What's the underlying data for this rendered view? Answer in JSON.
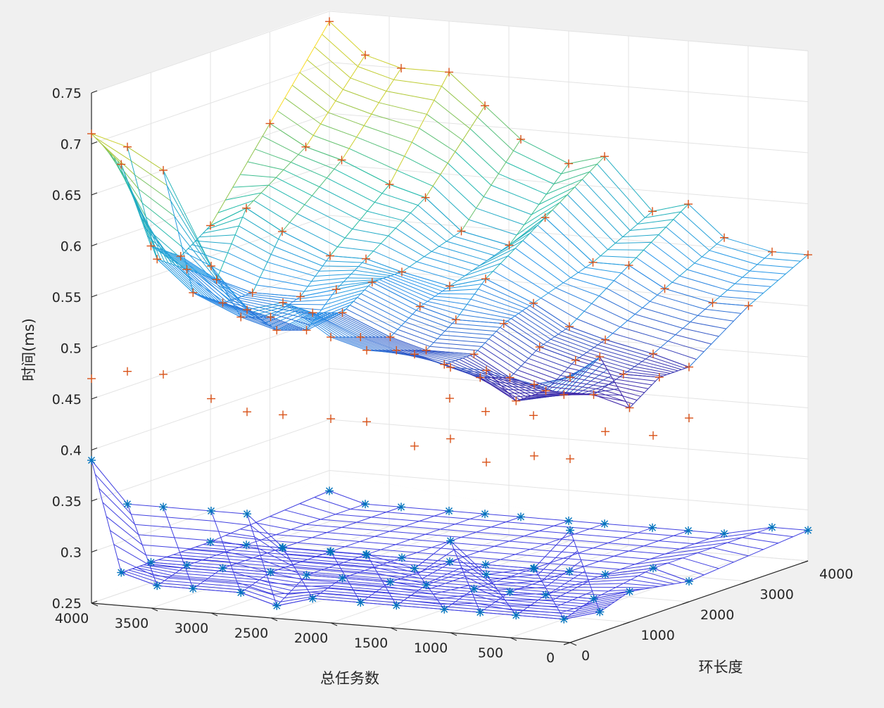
{
  "chart_data": {
    "type": "surface3d",
    "xlabel": "总任务数",
    "ylabel": "环长度",
    "zlabel": "时间(ms)",
    "xlim": [
      0,
      4000
    ],
    "ylim": [
      0,
      4000
    ],
    "zlim": [
      0.25,
      0.75
    ],
    "xticks": [
      0,
      500,
      1000,
      1500,
      2000,
      2500,
      3000,
      3500,
      4000
    ],
    "xtick_labels": [
      "0",
      "500",
      "1000",
      "1500",
      "2000",
      "2500",
      "3000",
      "3500",
      "4000"
    ],
    "yticks": [
      0,
      1000,
      2000,
      3000,
      4000
    ],
    "ytick_labels": [
      "0",
      "1000",
      "2000",
      "3000",
      "4000"
    ],
    "zticks": [
      0.25,
      0.3,
      0.35,
      0.4,
      0.45,
      0.5,
      0.55,
      0.6,
      0.65,
      0.7,
      0.75
    ],
    "ztick_labels": [
      "0.25",
      "0.3",
      "0.35",
      "0.4",
      "0.45",
      "0.5",
      "0.55",
      "0.6",
      "0.65",
      "0.7",
      "0.75"
    ],
    "grid": true,
    "series": [
      {
        "marker": "+",
        "color": "#d95319",
        "surface": "mesh-parula",
        "points": [
          [
            4000,
            0,
            0.71
          ],
          [
            3700,
            0,
            0.7
          ],
          [
            3400,
            0,
            0.68
          ],
          [
            3000,
            0,
            0.59
          ],
          [
            2700,
            0,
            0.55
          ],
          [
            2400,
            0,
            0.56
          ],
          [
            2000,
            0,
            0.53
          ],
          [
            1700,
            0,
            0.52
          ],
          [
            1300,
            0,
            0.52
          ],
          [
            1000,
            0,
            0.51
          ],
          [
            700,
            0,
            0.51
          ],
          [
            300,
            0,
            0.5
          ],
          [
            0,
            0,
            0.51
          ],
          [
            4000,
            500,
            0.67
          ],
          [
            3700,
            500,
            0.58
          ],
          [
            3400,
            500,
            0.55
          ],
          [
            3000,
            500,
            0.53
          ],
          [
            2700,
            500,
            0.52
          ],
          [
            2400,
            500,
            0.54
          ],
          [
            2000,
            500,
            0.52
          ],
          [
            1700,
            500,
            0.51
          ],
          [
            1300,
            500,
            0.5
          ],
          [
            1000,
            500,
            0.49
          ],
          [
            700,
            500,
            0.47
          ],
          [
            300,
            500,
            0.48
          ],
          [
            0,
            500,
            0.52
          ],
          [
            4000,
            1000,
            0.58
          ],
          [
            3700,
            1000,
            0.56
          ],
          [
            3400,
            1000,
            0.53
          ],
          [
            3000,
            1000,
            0.52
          ],
          [
            2700,
            1000,
            0.51
          ],
          [
            2400,
            1000,
            0.53
          ],
          [
            2000,
            1000,
            0.51
          ],
          [
            1700,
            1000,
            0.5
          ],
          [
            1300,
            1000,
            0.5
          ],
          [
            1000,
            1000,
            0.48
          ],
          [
            700,
            1000,
            0.47
          ],
          [
            300,
            1000,
            0.47
          ],
          [
            0,
            1000,
            0.46
          ],
          [
            4000,
            1500,
            0.56
          ],
          [
            3700,
            1500,
            0.54
          ],
          [
            3400,
            1500,
            0.53
          ],
          [
            3000,
            1500,
            0.53
          ],
          [
            2700,
            1500,
            0.54
          ],
          [
            2400,
            1500,
            0.55
          ],
          [
            2000,
            1500,
            0.53
          ],
          [
            1700,
            1500,
            0.52
          ],
          [
            1300,
            1500,
            0.52
          ],
          [
            1000,
            1500,
            0.5
          ],
          [
            700,
            1500,
            0.49
          ],
          [
            300,
            1500,
            0.48
          ],
          [
            0,
            1500,
            0.48
          ],
          [
            4000,
            2000,
            0.58
          ],
          [
            3700,
            2000,
            0.6
          ],
          [
            3400,
            2000,
            0.58
          ],
          [
            3000,
            2000,
            0.56
          ],
          [
            2700,
            2000,
            0.56
          ],
          [
            2400,
            2000,
            0.55
          ],
          [
            2000,
            2000,
            0.54
          ],
          [
            1700,
            2000,
            0.55
          ],
          [
            1300,
            2000,
            0.53
          ],
          [
            1000,
            2000,
            0.51
          ],
          [
            700,
            2000,
            0.5
          ],
          [
            300,
            2000,
            0.49
          ],
          [
            0,
            2000,
            0.48
          ],
          [
            4000,
            3000,
            0.66
          ],
          [
            3700,
            3000,
            0.64
          ],
          [
            3400,
            3000,
            0.63
          ],
          [
            3000,
            3000,
            0.61
          ],
          [
            2700,
            3000,
            0.6
          ],
          [
            2400,
            3000,
            0.57
          ],
          [
            2000,
            3000,
            0.56
          ],
          [
            1700,
            3000,
            0.59
          ],
          [
            1300,
            3000,
            0.55
          ],
          [
            1000,
            3000,
            0.55
          ],
          [
            700,
            3000,
            0.53
          ],
          [
            300,
            3000,
            0.52
          ],
          [
            0,
            3000,
            0.52
          ],
          [
            4000,
            4000,
            0.74
          ],
          [
            3700,
            4000,
            0.71
          ],
          [
            3400,
            4000,
            0.7
          ],
          [
            3000,
            4000,
            0.7
          ],
          [
            2700,
            4000,
            0.67
          ],
          [
            2400,
            4000,
            0.64
          ],
          [
            2000,
            4000,
            0.62
          ],
          [
            1700,
            4000,
            0.63
          ],
          [
            1300,
            4000,
            0.58
          ],
          [
            1000,
            4000,
            0.59
          ],
          [
            700,
            4000,
            0.56
          ],
          [
            300,
            4000,
            0.55
          ],
          [
            0,
            4000,
            0.55
          ],
          [
            4000,
            0,
            0.47
          ],
          [
            3700,
            0,
            0.48
          ],
          [
            3400,
            0,
            0.48
          ],
          [
            3000,
            0,
            0.46
          ],
          [
            2700,
            0,
            0.45
          ],
          [
            2400,
            0,
            0.45
          ],
          [
            2000,
            0,
            0.45
          ],
          [
            1700,
            0,
            0.45
          ],
          [
            1300,
            0,
            0.43
          ],
          [
            1000,
            0,
            0.44
          ],
          [
            700,
            0,
            0.42
          ],
          [
            300,
            0,
            0.43
          ],
          [
            0,
            0,
            0.43
          ],
          [
            2000,
            2000,
            0.43
          ],
          [
            1700,
            2000,
            0.42
          ],
          [
            1300,
            2000,
            0.42
          ],
          [
            700,
            2000,
            0.41
          ],
          [
            300,
            2000,
            0.41
          ],
          [
            0,
            2000,
            0.43
          ]
        ]
      },
      {
        "marker": "*",
        "color": "#0072bd",
        "surface": "mesh-blue",
        "points": [
          [
            4000,
            0,
            0.39
          ],
          [
            3700,
            0,
            0.35
          ],
          [
            3400,
            0,
            0.35
          ],
          [
            3000,
            0,
            0.35
          ],
          [
            2700,
            0,
            0.35
          ],
          [
            2400,
            0,
            0.32
          ],
          [
            2000,
            0,
            0.32
          ],
          [
            1700,
            0,
            0.32
          ],
          [
            1300,
            0,
            0.31
          ],
          [
            1000,
            0,
            0.34
          ],
          [
            700,
            0,
            0.31
          ],
          [
            300,
            0,
            0.32
          ],
          [
            0,
            0,
            0.36
          ],
          [
            4000,
            500,
            0.27
          ],
          [
            3700,
            500,
            0.26
          ],
          [
            3400,
            500,
            0.26
          ],
          [
            3000,
            500,
            0.26
          ],
          [
            2700,
            500,
            0.25
          ],
          [
            2400,
            500,
            0.26
          ],
          [
            2000,
            500,
            0.26
          ],
          [
            1700,
            500,
            0.26
          ],
          [
            1300,
            500,
            0.26
          ],
          [
            1000,
            500,
            0.26
          ],
          [
            700,
            500,
            0.26
          ],
          [
            300,
            500,
            0.26
          ],
          [
            0,
            500,
            0.27
          ],
          [
            4000,
            1000,
            0.27
          ],
          [
            3700,
            1000,
            0.27
          ],
          [
            3400,
            1000,
            0.27
          ],
          [
            3000,
            1000,
            0.27
          ],
          [
            2700,
            1000,
            0.27
          ],
          [
            2400,
            1000,
            0.27
          ],
          [
            2000,
            1000,
            0.27
          ],
          [
            1700,
            1000,
            0.27
          ],
          [
            1300,
            1000,
            0.27
          ],
          [
            1000,
            1000,
            0.27
          ],
          [
            700,
            1000,
            0.27
          ],
          [
            300,
            1000,
            0.27
          ],
          [
            0,
            1000,
            0.28
          ],
          [
            4000,
            2000,
            0.27
          ],
          [
            3700,
            2000,
            0.27
          ],
          [
            3400,
            2000,
            0.27
          ],
          [
            3000,
            2000,
            0.27
          ],
          [
            2700,
            2000,
            0.27
          ],
          [
            2400,
            2000,
            0.27
          ],
          [
            2000,
            2000,
            0.27
          ],
          [
            1700,
            2000,
            0.27
          ],
          [
            1300,
            2000,
            0.27
          ],
          [
            1000,
            2000,
            0.27
          ],
          [
            700,
            2000,
            0.27
          ],
          [
            300,
            2000,
            0.28
          ],
          [
            0,
            2000,
            0.27
          ],
          [
            4000,
            4000,
            0.28
          ],
          [
            3700,
            4000,
            0.27
          ],
          [
            3400,
            4000,
            0.27
          ],
          [
            3000,
            4000,
            0.27
          ],
          [
            2700,
            4000,
            0.27
          ],
          [
            2400,
            4000,
            0.27
          ],
          [
            2000,
            4000,
            0.27
          ],
          [
            1700,
            4000,
            0.27
          ],
          [
            1300,
            4000,
            0.27
          ],
          [
            1000,
            4000,
            0.27
          ],
          [
            700,
            4000,
            0.27
          ],
          [
            300,
            4000,
            0.28
          ],
          [
            0,
            4000,
            0.28
          ]
        ]
      }
    ]
  }
}
